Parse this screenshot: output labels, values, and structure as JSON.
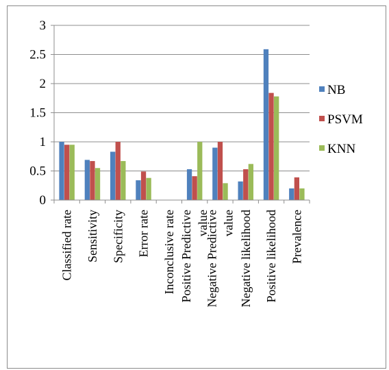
{
  "chart_data": {
    "type": "bar",
    "title": "",
    "xlabel": "",
    "ylabel": "",
    "ylim": [
      0,
      3
    ],
    "yticks": [
      "0",
      "0.5",
      "1",
      "1.5",
      "2",
      "2.5",
      "3"
    ],
    "grid": true,
    "legend_position": "right",
    "categories": [
      "Classified rate",
      "Sensitivity",
      "Specificity",
      "Error rate",
      "Inconclusive rate",
      "Positive Predictive value",
      "Negative Predictive value",
      "Negative likelihood",
      "Positive likelihood",
      "Prevalence"
    ],
    "category_lines": [
      [
        "Classified rate"
      ],
      [
        "Sensitivity"
      ],
      [
        "Specificity"
      ],
      [
        "Error rate"
      ],
      [
        "Inconclusive rate"
      ],
      [
        "Positive Predictive",
        "value"
      ],
      [
        "Negative Predictive",
        "value"
      ],
      [
        "Negative likelihood"
      ],
      [
        "Positive likelihood"
      ],
      [
        "Prevalence"
      ]
    ],
    "series": [
      {
        "name": "NB",
        "color": "#4f81bd",
        "values": [
          1.0,
          0.69,
          0.83,
          0.34,
          0,
          0.53,
          0.9,
          0.32,
          2.59,
          0.2
        ]
      },
      {
        "name": "PSVM",
        "color": "#c0504d",
        "values": [
          0.95,
          0.67,
          1.0,
          0.49,
          0,
          0.41,
          1.0,
          0.53,
          1.84,
          0.39
        ]
      },
      {
        "name": "KNN",
        "color": "#9bbb59",
        "values": [
          0.95,
          0.55,
          0.67,
          0.38,
          0,
          1.0,
          0.29,
          0.62,
          1.78,
          0.2
        ]
      }
    ]
  }
}
